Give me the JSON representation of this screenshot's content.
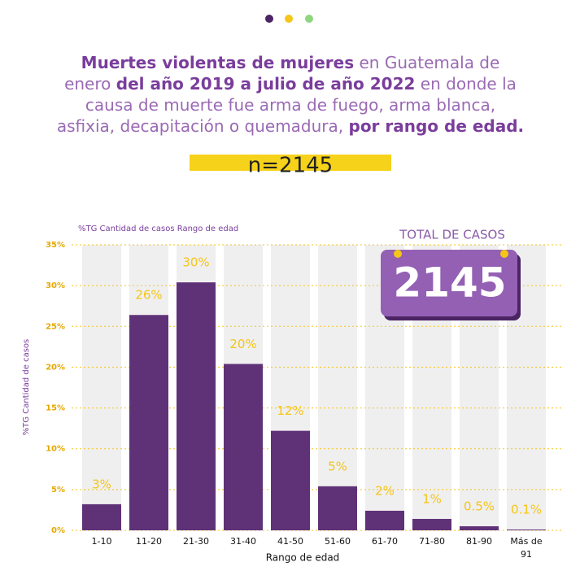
{
  "header": {
    "title_parts": [
      "Muertes violentas de mujeres",
      " en Guatemala de enero ",
      "del año 2019 a julio de año 2022",
      " en donde la causa de muerte fue arma de fuego, arma blanca, asfixia, decapitación o quemadura, ",
      "por rango de edad."
    ],
    "sample": "n=2145"
  },
  "badge": {
    "label": "TOTAL DE CASOS",
    "value": "2145"
  },
  "chart_data": {
    "type": "bar",
    "title": "%TG Cantidad de casos Rango de edad",
    "x_label": "Rango de edad",
    "y_label": "%TG Cantidad de casos",
    "categories": [
      "1-10",
      "11-20",
      "21-30",
      "31-40",
      "41-50",
      "51-60",
      "61-70",
      "71-80",
      "81-90",
      "Más de 91"
    ],
    "values": [
      3.2,
      26.4,
      30.4,
      20.4,
      12.2,
      5.4,
      2.4,
      1.4,
      0.5,
      0.1
    ],
    "value_labels": [
      "3%",
      "26%",
      "30%",
      "20%",
      "12%",
      "5%",
      "2%",
      "1%",
      "0.5%",
      "0.1%"
    ],
    "color": "#5f3278",
    "ylim": [
      0,
      35
    ],
    "yticks": [
      {
        "value": 0,
        "label": "0%"
      },
      {
        "value": 5,
        "label": "5%"
      },
      {
        "value": 10,
        "label": "10%"
      },
      {
        "value": 15,
        "label": "15%"
      },
      {
        "value": 20,
        "label": "20%"
      },
      {
        "value": 25,
        "label": "25%"
      },
      {
        "value": 30,
        "label": "30%"
      },
      {
        "value": 35,
        "label": "35%"
      }
    ],
    "grid": true
  }
}
